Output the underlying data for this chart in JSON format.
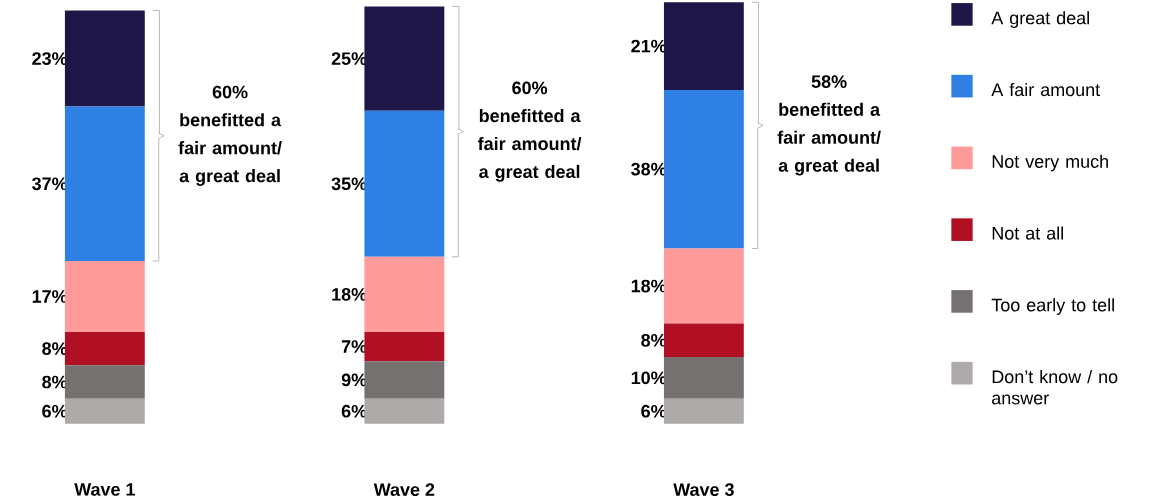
{
  "chart_data": {
    "type": "bar",
    "stacked": true,
    "categories": [
      "Wave 1",
      "Wave 2",
      "Wave 3"
    ],
    "series": [
      {
        "name": "Don’t know / no answer",
        "color": "#aeaaaa",
        "values": [
          6,
          6,
          6
        ],
        "value_labels": [
          "6%",
          "6%",
          "6%"
        ]
      },
      {
        "name": "Too early to tell",
        "color": "#767171",
        "values": [
          8,
          9,
          10
        ],
        "value_labels": [
          "8%",
          "9%",
          "10%"
        ]
      },
      {
        "name": "Not at all",
        "color": "#b00f24",
        "values": [
          8,
          7,
          8
        ],
        "value_labels": [
          "8%",
          "7%",
          "8%"
        ]
      },
      {
        "name": "Not very much",
        "color": "#ff9b9b",
        "values": [
          17,
          18,
          18
        ],
        "value_labels": [
          "17%",
          "18%",
          "18%"
        ]
      },
      {
        "name": "A fair amount",
        "color": "#2f80e4",
        "values": [
          37,
          35,
          38
        ],
        "value_labels": [
          "37%",
          "35%",
          "38%"
        ]
      },
      {
        "name": "A great deal",
        "color": "#1e1646",
        "values": [
          23,
          25,
          21
        ],
        "value_labels": [
          "23%",
          "25%",
          "21%"
        ]
      }
    ],
    "annotations": [
      "60% benefitted a fair amount/ a great deal",
      "60% benefitted a fair amount/ a great deal",
      "58% benefitted a fair amount/ a great deal"
    ],
    "legend": "right"
  }
}
